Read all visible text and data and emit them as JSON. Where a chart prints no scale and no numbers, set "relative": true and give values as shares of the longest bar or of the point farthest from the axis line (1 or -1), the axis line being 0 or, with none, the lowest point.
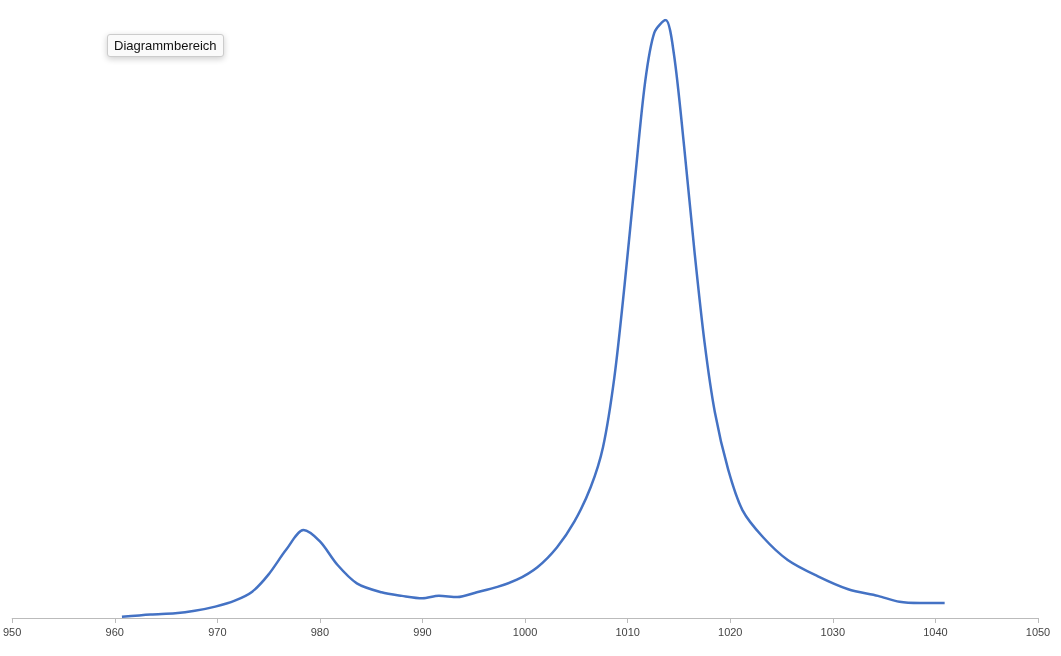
{
  "chart_data": {
    "type": "line",
    "relative": true,
    "annotations": [
      "Diagrammbereich"
    ],
    "xlim": [
      950,
      1050
    ],
    "xticks": [
      950,
      960,
      970,
      980,
      990,
      1000,
      1010,
      1020,
      1030,
      1040,
      1050
    ],
    "grid": false,
    "marker": "none",
    "line_style": "solid",
    "series": [
      {
        "color": "#4472c4",
        "x": [
          960.7,
          963.5,
          965.9,
          967.8,
          969.8,
          971.7,
          973.4,
          975.0,
          976.7,
          978.4,
          980.0,
          981.7,
          983.6,
          986.0,
          988.0,
          990.0,
          991.6,
          993.4,
          995.3,
          997.3,
          999.2,
          1001.2,
          1003.1,
          1004.8,
          1006.4,
          1007.6,
          1008.7,
          1009.7,
          1010.7,
          1011.7,
          1012.6,
          1013.7,
          1014.5,
          1015.5,
          1016.5,
          1017.5,
          1018.5,
          1019.8,
          1021.2,
          1023.2,
          1025.6,
          1028.5,
          1031.5,
          1034.4,
          1036.5,
          1038.5,
          1040.9
        ],
        "values": [
          0.002,
          0.006,
          0.008,
          0.012,
          0.019,
          0.029,
          0.044,
          0.073,
          0.114,
          0.147,
          0.128,
          0.089,
          0.058,
          0.043,
          0.037,
          0.033,
          0.037,
          0.035,
          0.043,
          0.052,
          0.064,
          0.085,
          0.118,
          0.161,
          0.219,
          0.286,
          0.402,
          0.557,
          0.731,
          0.896,
          0.979,
          1,
          0.944,
          0.789,
          0.615,
          0.46,
          0.344,
          0.248,
          0.18,
          0.135,
          0.097,
          0.07,
          0.048,
          0.037,
          0.027,
          0.025,
          0.025
        ]
      }
    ]
  }
}
